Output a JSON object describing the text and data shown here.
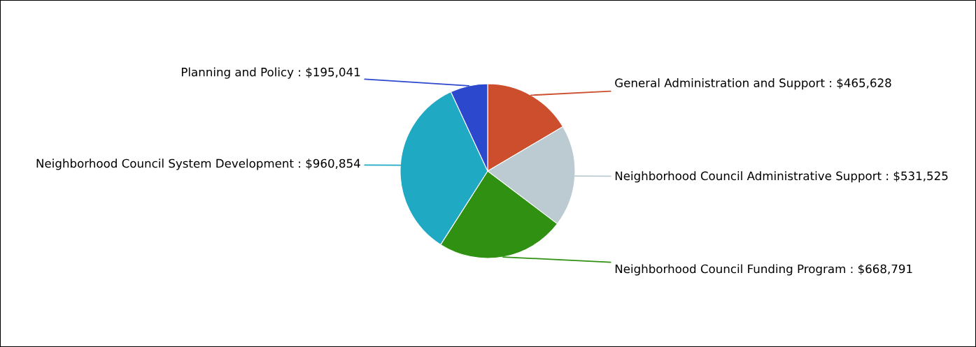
{
  "chart_data": {
    "type": "pie",
    "categories": [
      "General Administration and Support : $465,628",
      "Neighborhood Council Administrative Support : $531,525",
      "Neighborhood Council Funding Program : $668,791",
      "Neighborhood Council System Development : $960,854",
      "Planning and Policy : $195,041"
    ],
    "values": [
      465628,
      531525,
      668791,
      960854,
      195041
    ],
    "colors": [
      "#cc4e2c",
      "#bccbd1",
      "#2f9012",
      "#1fa9c3",
      "#2c48cc"
    ]
  }
}
